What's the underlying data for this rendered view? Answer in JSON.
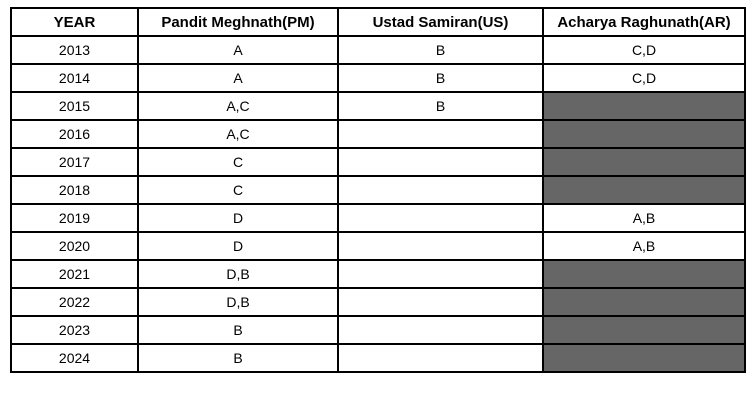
{
  "table": {
    "columns": [
      "YEAR",
      "Pandit Meghnath(PM)",
      "Ustad Samiran(US)",
      "Acharya Raghunath(AR)"
    ],
    "rows": [
      {
        "year": "2013",
        "pm": "A",
        "us": "B",
        "ar": "C,D",
        "ar_shaded": false
      },
      {
        "year": "2014",
        "pm": "A",
        "us": "B",
        "ar": "C,D",
        "ar_shaded": false
      },
      {
        "year": "2015",
        "pm": "A,C",
        "us": "B",
        "ar": "",
        "ar_shaded": true
      },
      {
        "year": "2016",
        "pm": "A,C",
        "us": "",
        "ar": "",
        "ar_shaded": true
      },
      {
        "year": "2017",
        "pm": "C",
        "us": "",
        "ar": "",
        "ar_shaded": true
      },
      {
        "year": "2018",
        "pm": "C",
        "us": "",
        "ar": "",
        "ar_shaded": true
      },
      {
        "year": "2019",
        "pm": "D",
        "us": "",
        "ar": "A,B",
        "ar_shaded": false
      },
      {
        "year": "2020",
        "pm": "D",
        "us": "",
        "ar": "A,B",
        "ar_shaded": false
      },
      {
        "year": "2021",
        "pm": "D,B",
        "us": "",
        "ar": "",
        "ar_shaded": true
      },
      {
        "year": "2022",
        "pm": "D,B",
        "us": "",
        "ar": "",
        "ar_shaded": true
      },
      {
        "year": "2023",
        "pm": "B",
        "us": "",
        "ar": "",
        "ar_shaded": true
      },
      {
        "year": "2024",
        "pm": "B",
        "us": "",
        "ar": "",
        "ar_shaded": true
      }
    ],
    "colors": {
      "shaded_cell": "#666666",
      "border": "#000000",
      "background": "#ffffff",
      "text": "#000000"
    }
  }
}
